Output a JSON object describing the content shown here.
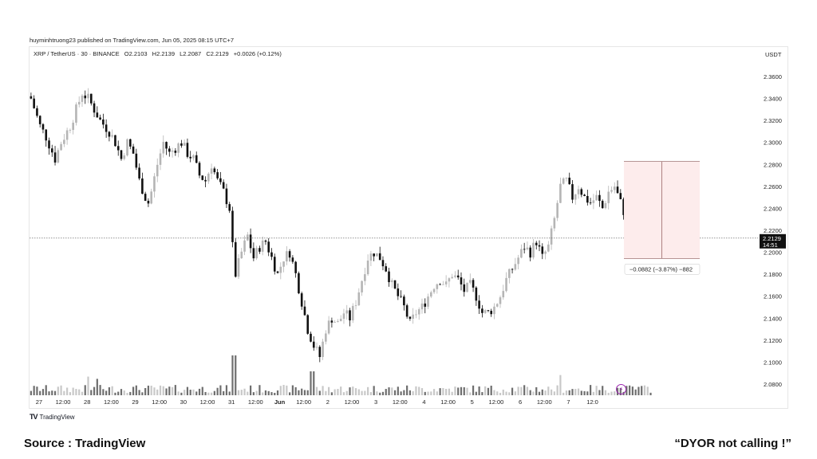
{
  "header": {
    "published": "huyminhtruong23 published on TradingView.com, Jun 05, 2025 08:15 UTC+7"
  },
  "legend": {
    "symbol": "XRP / TetherUS · 30 · BINANCE",
    "open": "O2.2103",
    "high": "H2.2139",
    "low": "L2.2087",
    "close": "C2.2129",
    "change": "+0.0026 (+0.12%)"
  },
  "currency": "USDT",
  "price_label": {
    "value": "2.2129",
    "countdown": "14:51"
  },
  "measure_label": "−0.0882 (−3.87%) −882",
  "footer": {
    "logo_text": "TradingView",
    "source": "Source : TradingView",
    "disclaimer": "“DYOR  not calling !”"
  },
  "colors": {
    "up_candle": "#b5b5b5",
    "down_candle": "#111111",
    "measure_fill": "#fdecec",
    "price_line": "#555555",
    "alert_icon": "#9c27b0"
  },
  "icons": {
    "alert": "lightning-bolt-icon"
  },
  "chart_data": {
    "type": "candlestick",
    "timeframe": "30",
    "ylim": [
      2.07,
      2.37
    ],
    "yticks": [
      2.08,
      2.1,
      2.12,
      2.14,
      2.16,
      2.18,
      2.2,
      2.22,
      2.24,
      2.26,
      2.28,
      2.3,
      2.32,
      2.34,
      2.36
    ],
    "ytick_labels": [
      "2.0800",
      "2.1000",
      "2.1200",
      "2.1400",
      "2.1600",
      "2.1800",
      "2.2000",
      "2.2200",
      "2.2400",
      "2.2600",
      "2.2800",
      "2.3000",
      "2.3200",
      "2.3400",
      "2.3600"
    ],
    "xtick_labels": [
      "27",
      "12:00",
      "28",
      "12:00",
      "29",
      "12:00",
      "30",
      "12:00",
      "31",
      "12:00",
      "Jun",
      "12:00",
      "2",
      "12:00",
      "3",
      "12:00",
      "4",
      "12:00",
      "5",
      "12:00",
      "6",
      "12:00",
      "7",
      "12:0"
    ],
    "xtick_bar_index": [
      0,
      8,
      16,
      24,
      32,
      40,
      48,
      56,
      64,
      72,
      80,
      88,
      96,
      104,
      112,
      120,
      128,
      136,
      144,
      152,
      160,
      168,
      176,
      184
    ],
    "close_path": [
      [
        0,
        2.34
      ],
      [
        3,
        2.315
      ],
      [
        5,
        2.305
      ],
      [
        8,
        2.285
      ],
      [
        10,
        2.3
      ],
      [
        13,
        2.315
      ],
      [
        15,
        2.33
      ],
      [
        17,
        2.345
      ],
      [
        19,
        2.34
      ],
      [
        21,
        2.33
      ],
      [
        23,
        2.32
      ],
      [
        26,
        2.31
      ],
      [
        28,
        2.3
      ],
      [
        30,
        2.285
      ],
      [
        32,
        2.3
      ],
      [
        34,
        2.29
      ],
      [
        36,
        2.265
      ],
      [
        38,
        2.25
      ],
      [
        39,
        2.245
      ],
      [
        40,
        2.255
      ],
      [
        42,
        2.28
      ],
      [
        44,
        2.3
      ],
      [
        46,
        2.29
      ],
      [
        48,
        2.295
      ],
      [
        50,
        2.3
      ],
      [
        52,
        2.29
      ],
      [
        54,
        2.285
      ],
      [
        56,
        2.27
      ],
      [
        58,
        2.265
      ],
      [
        60,
        2.28
      ],
      [
        62,
        2.265
      ],
      [
        64,
        2.255
      ],
      [
        66,
        2.24
      ],
      [
        67,
        2.205
      ],
      [
        68,
        2.18
      ],
      [
        70,
        2.2
      ],
      [
        72,
        2.215
      ],
      [
        74,
        2.195
      ],
      [
        76,
        2.205
      ],
      [
        78,
        2.21
      ],
      [
        80,
        2.195
      ],
      [
        82,
        2.18
      ],
      [
        84,
        2.195
      ],
      [
        86,
        2.2
      ],
      [
        88,
        2.18
      ],
      [
        90,
        2.155
      ],
      [
        92,
        2.13
      ],
      [
        94,
        2.115
      ],
      [
        96,
        2.105
      ],
      [
        98,
        2.13
      ],
      [
        100,
        2.14
      ],
      [
        102,
        2.135
      ],
      [
        104,
        2.145
      ],
      [
        106,
        2.14
      ],
      [
        108,
        2.155
      ],
      [
        110,
        2.175
      ],
      [
        112,
        2.195
      ],
      [
        114,
        2.2
      ],
      [
        116,
        2.195
      ],
      [
        118,
        2.185
      ],
      [
        120,
        2.17
      ],
      [
        122,
        2.16
      ],
      [
        124,
        2.15
      ],
      [
        126,
        2.135
      ],
      [
        128,
        2.145
      ],
      [
        130,
        2.15
      ],
      [
        132,
        2.16
      ],
      [
        134,
        2.17
      ],
      [
        136,
        2.175
      ],
      [
        138,
        2.17
      ],
      [
        140,
        2.18
      ],
      [
        142,
        2.175
      ],
      [
        144,
        2.165
      ],
      [
        146,
        2.17
      ],
      [
        148,
        2.16
      ],
      [
        150,
        2.145
      ],
      [
        152,
        2.145
      ],
      [
        154,
        2.15
      ],
      [
        156,
        2.16
      ],
      [
        158,
        2.175
      ],
      [
        160,
        2.185
      ],
      [
        162,
        2.195
      ],
      [
        164,
        2.205
      ],
      [
        166,
        2.2
      ],
      [
        168,
        2.21
      ],
      [
        170,
        2.195
      ],
      [
        172,
        2.205
      ],
      [
        174,
        2.23
      ],
      [
        176,
        2.26
      ],
      [
        178,
        2.265
      ],
      [
        180,
        2.25
      ],
      [
        182,
        2.26
      ],
      [
        184,
        2.25
      ],
      [
        186,
        2.245
      ],
      [
        188,
        2.25
      ],
      [
        190,
        2.24
      ],
      [
        192,
        2.255
      ],
      [
        194,
        2.26
      ],
      [
        196,
        2.245
      ],
      [
        198,
        2.23
      ],
      [
        200,
        2.215
      ],
      [
        202,
        2.205
      ],
      [
        204,
        2.21
      ],
      [
        206,
        2.213
      ]
    ],
    "last_price": 2.2129,
    "measure": {
      "from": 2.2826,
      "to": 2.1944,
      "change": -0.0882,
      "change_pct": -3.87,
      "ticks": -882
    }
  }
}
